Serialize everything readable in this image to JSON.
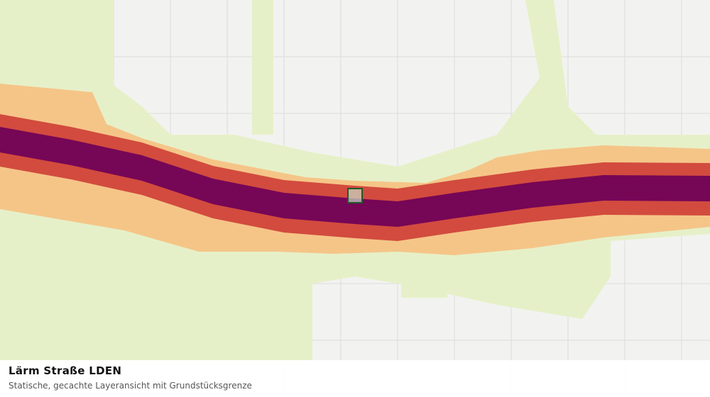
{
  "title": "Lärm Straße LDEN",
  "subtitle": "Statische, gecachte Layeransicht mit Grundstücksgrenze"
}
